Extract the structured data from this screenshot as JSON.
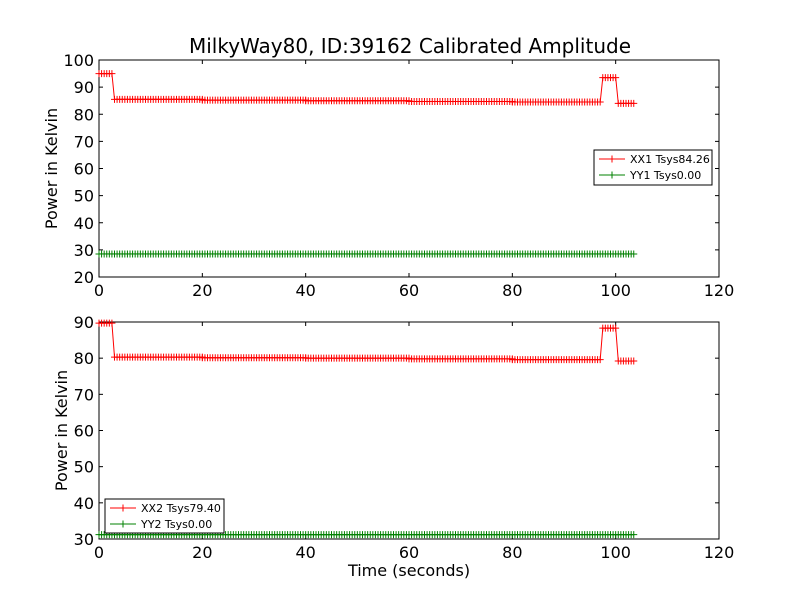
{
  "figure": {
    "title": "MilkyWay80, ID:39162 Calibrated Amplitude"
  },
  "colors": {
    "xx": "#ff0000",
    "yy": "#008000",
    "axes": "#000000",
    "background": "#ffffff"
  },
  "chart_data": [
    {
      "type": "line",
      "title": "MilkyWay80, ID:39162 Calibrated Amplitude",
      "xlabel": "",
      "ylabel": "Power in Kelvin",
      "xlim": [
        0,
        120
      ],
      "ylim": [
        20,
        100
      ],
      "xticks": [
        0,
        20,
        40,
        60,
        80,
        100,
        120
      ],
      "yticks": [
        20,
        30,
        40,
        50,
        60,
        70,
        80,
        90,
        100
      ],
      "xtick_labels": [
        "0",
        "20",
        "40",
        "60",
        "80",
        "100",
        "120"
      ],
      "ytick_labels": [
        "20",
        "30",
        "40",
        "50",
        "60",
        "70",
        "80",
        "90",
        "100"
      ],
      "grid": false,
      "marker": "+",
      "legend": {
        "location": "center-right",
        "entries": [
          "XX1 Tsys84.26",
          "YY1 Tsys0.00"
        ]
      },
      "series": [
        {
          "name": "XX1 Tsys84.26",
          "color": "#ff0000",
          "segments": [
            {
              "x_start": 0,
              "x_end": 2.5,
              "value": 95
            },
            {
              "x_start": 3,
              "x_end": 20,
              "value": 85.5
            },
            {
              "x_start": 20,
              "x_end": 40,
              "value": 85.2
            },
            {
              "x_start": 40,
              "x_end": 60,
              "value": 85.0
            },
            {
              "x_start": 60,
              "x_end": 80,
              "value": 84.7
            },
            {
              "x_start": 80,
              "x_end": 97,
              "value": 84.5
            },
            {
              "x_start": 97.5,
              "x_end": 100,
              "value": 93.5
            },
            {
              "x_start": 100.5,
              "x_end": 103.5,
              "value": 84
            }
          ]
        },
        {
          "name": "YY1 Tsys0.00",
          "color": "#008000",
          "segments": [
            {
              "x_start": 0,
              "x_end": 103.5,
              "value": 28.5
            }
          ]
        }
      ]
    },
    {
      "type": "line",
      "title": "",
      "xlabel": "Time (seconds)",
      "ylabel": "Power in Kelvin",
      "xlim": [
        0,
        120
      ],
      "ylim": [
        30,
        90
      ],
      "xticks": [
        0,
        20,
        40,
        60,
        80,
        100,
        120
      ],
      "yticks": [
        30,
        40,
        50,
        60,
        70,
        80,
        90
      ],
      "xtick_labels": [
        "0",
        "20",
        "40",
        "60",
        "80",
        "100",
        "120"
      ],
      "ytick_labels": [
        "30",
        "40",
        "50",
        "60",
        "70",
        "80",
        "90"
      ],
      "grid": false,
      "marker": "+",
      "legend": {
        "location": "lower-left",
        "entries": [
          "XX2 Tsys79.40",
          "YY2 Tsys0.00"
        ]
      },
      "series": [
        {
          "name": "XX2 Tsys79.40",
          "color": "#ff0000",
          "segments": [
            {
              "x_start": 0,
              "x_end": 2.5,
              "value": 89.7
            },
            {
              "x_start": 3,
              "x_end": 20,
              "value": 80.3
            },
            {
              "x_start": 20,
              "x_end": 40,
              "value": 80.1
            },
            {
              "x_start": 40,
              "x_end": 60,
              "value": 80.0
            },
            {
              "x_start": 60,
              "x_end": 80,
              "value": 79.8
            },
            {
              "x_start": 80,
              "x_end": 97,
              "value": 79.6
            },
            {
              "x_start": 97.5,
              "x_end": 100,
              "value": 88.3
            },
            {
              "x_start": 100.5,
              "x_end": 103.5,
              "value": 79.2
            }
          ]
        },
        {
          "name": "YY2 Tsys0.00",
          "color": "#008000",
          "segments": [
            {
              "x_start": 0,
              "x_end": 103.5,
              "value": 31.2
            }
          ]
        }
      ]
    }
  ]
}
